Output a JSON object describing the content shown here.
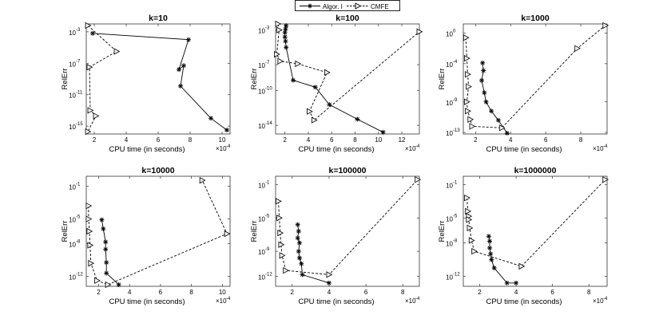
{
  "legend": {
    "series1": "Algor. I",
    "series2": "CMFE"
  },
  "chart_data": [
    {
      "type": "line",
      "title": "k=10",
      "xlabel": "CPU time (in seconds)",
      "ylabel": "RelErr",
      "x_exponent_label": "×10",
      "x_exponent": "-4",
      "xlim": [
        1.5,
        10.5
      ],
      "ylim_log10": [
        -16,
        -2
      ],
      "xticks": [
        2,
        4,
        6,
        8,
        10
      ],
      "xtick_labels": [
        "2",
        "4",
        "6",
        "8",
        "10"
      ],
      "yticks_log10": [
        -15,
        -11,
        -7,
        -3
      ],
      "ytick_mant": [
        "10",
        "10",
        "10",
        "10"
      ],
      "ytick_exp": [
        "-15",
        "-11",
        "-7",
        "-3"
      ],
      "series": [
        {
          "name": "Algor. I",
          "x": [
            1.9,
            7.9,
            7.3,
            7.6,
            7.4,
            9.3,
            10.3
          ],
          "log10_y": [
            -3.2,
            -4.0,
            -7.8,
            -7.3,
            -9.9,
            -14.0,
            -15.5
          ]
        },
        {
          "name": "CMFE",
          "x": [
            1.6,
            3.4,
            1.7,
            1.75,
            2.1,
            1.6
          ],
          "log10_y": [
            -2.2,
            -5.5,
            -7.5,
            -13.0,
            -13.7,
            -15.7
          ]
        }
      ]
    },
    {
      "type": "line",
      "title": "k=100",
      "xlabel": "CPU time (in seconds)",
      "ylabel": "RelErr",
      "x_exponent_label": "×10",
      "x_exponent": "-4",
      "xlim": [
        1.2,
        13.5
      ],
      "ylim_log10": [
        -15,
        -2.3
      ],
      "xticks": [
        2,
        4,
        6,
        8,
        10,
        12
      ],
      "xtick_labels": [
        "2",
        "4",
        "6",
        "8",
        "10",
        "12"
      ],
      "yticks_log10": [
        -14,
        -10,
        -7,
        -3
      ],
      "ytick_mant": [
        "10",
        "10",
        "10",
        "10"
      ],
      "ytick_exp": [
        "-14",
        "-10",
        "-7",
        "-3"
      ],
      "series": [
        {
          "name": "Algor. I",
          "x": [
            2.1,
            2.05,
            2.0,
            2.0,
            2.05,
            2.1,
            2.7,
            4.6,
            5.8,
            8.2,
            10.4
          ],
          "log10_y": [
            -2.5,
            -2.9,
            -3.3,
            -3.8,
            -4.3,
            -5.0,
            -8.8,
            -9.6,
            -11.6,
            -13.3,
            -14.8
          ]
        },
        {
          "name": "CMFE",
          "x": [
            1.4,
            1.5,
            1.3,
            1.6,
            3.1,
            5.6,
            4.1,
            4.5,
            13.5
          ],
          "log10_y": [
            -2.3,
            -3.0,
            -5.8,
            -6.6,
            -6.9,
            -7.9,
            -12.4,
            -13.4,
            -3.2
          ]
        }
      ]
    },
    {
      "type": "line",
      "title": "k=1000",
      "xlabel": "CPU time (in seconds)",
      "ylabel": "RelErr",
      "x_exponent_label": "×10",
      "x_exponent": "-4",
      "xlim": [
        1.3,
        9.5
      ],
      "ylim_log10": [
        -13.2,
        1.2
      ],
      "xticks": [
        2,
        4,
        6,
        8
      ],
      "xtick_labels": [
        "2",
        "4",
        "6",
        "8"
      ],
      "yticks_log10": [
        -13,
        -9,
        -4,
        0
      ],
      "ytick_mant": [
        "10",
        "10",
        "10",
        "10"
      ],
      "ytick_exp": [
        "-13",
        "-9",
        "-4",
        "0"
      ],
      "series": [
        {
          "name": "Algor. I",
          "x": [
            2.4,
            2.45,
            2.35,
            2.5,
            2.6,
            2.9,
            3.3,
            3.8
          ],
          "log10_y": [
            -3.9,
            -4.9,
            -6.2,
            -7.8,
            -9.0,
            -10.2,
            -11.4,
            -13.1
          ]
        },
        {
          "name": "CMFE",
          "x": [
            1.45,
            1.5,
            1.55,
            1.6,
            1.5,
            1.55,
            1.7,
            1.8,
            3.5,
            7.8,
            9.4
          ],
          "log10_y": [
            -0.6,
            -3.3,
            -5.4,
            -7.0,
            -9.0,
            -10.2,
            -11.3,
            -12.2,
            -12.4,
            -2.0,
            1.0
          ]
        }
      ]
    },
    {
      "type": "line",
      "title": "k=10000",
      "xlabel": "CPU time (in seconds)",
      "ylabel": "RelErr",
      "x_exponent_label": "×10",
      "x_exponent": "-4",
      "xlim": [
        1.2,
        10.5
      ],
      "ylim_log10": [
        -13.2,
        0.2
      ],
      "xticks": [
        2,
        4,
        6,
        8,
        10
      ],
      "xtick_labels": [
        "2",
        "4",
        "6",
        "8",
        "10"
      ],
      "yticks_log10": [
        -12,
        -8,
        -5,
        -1
      ],
      "ytick_mant": [
        "10",
        "10",
        "10",
        "10"
      ],
      "ytick_exp": [
        "-12",
        "-8",
        "-5",
        "-1"
      ],
      "series": [
        {
          "name": "Algor. I",
          "x": [
            2.2,
            2.3,
            2.45,
            2.45,
            2.5,
            2.5,
            3.3
          ],
          "log10_y": [
            -5.1,
            -6.2,
            -7.8,
            -8.7,
            -10.3,
            -11.6,
            -13.0
          ]
        },
        {
          "name": "CMFE",
          "x": [
            1.35,
            1.35,
            1.4,
            1.45,
            1.5,
            1.9,
            2.6,
            10.3,
            8.7
          ],
          "log10_y": [
            -3.4,
            -5.0,
            -6.5,
            -8.2,
            -10.4,
            -12.5,
            -13.0,
            -6.8,
            -0.3
          ]
        }
      ]
    },
    {
      "type": "line",
      "title": "k=100000",
      "xlabel": "CPU time (in seconds)",
      "ylabel": "RelErr",
      "x_exponent_label": "×10",
      "x_exponent": "-4",
      "xlim": [
        1.1,
        8.9
      ],
      "ylim_log10": [
        -13.2,
        0.0
      ],
      "xticks": [
        2,
        4,
        6,
        8
      ],
      "xtick_labels": [
        "2",
        "4",
        "6",
        "8"
      ],
      "yticks_log10": [
        -12,
        -9,
        -5,
        -1
      ],
      "ytick_mant": [
        "10",
        "10",
        "10",
        "10"
      ],
      "ytick_exp": [
        "-12",
        "-9",
        "-5",
        "-1"
      ],
      "series": [
        {
          "name": "Algor. I",
          "x": [
            2.3,
            2.35,
            2.3,
            2.4,
            2.35,
            2.4,
            2.5,
            2.55,
            4.0
          ],
          "log10_y": [
            -5.8,
            -6.6,
            -7.4,
            -8.0,
            -9.0,
            -9.8,
            -10.5,
            -11.8,
            -12.8
          ]
        },
        {
          "name": "CMFE",
          "x": [
            1.25,
            1.3,
            1.35,
            1.4,
            1.45,
            1.65,
            4.0,
            8.8
          ],
          "log10_y": [
            -3.0,
            -5.0,
            -6.8,
            -8.2,
            -9.5,
            -11.3,
            -11.8,
            -0.4
          ]
        }
      ]
    },
    {
      "type": "line",
      "title": "k=1000000",
      "xlabel": "CPU time (in seconds)",
      "ylabel": "RelErr",
      "x_exponent_label": "×10",
      "x_exponent": "-4",
      "xlim": [
        1.1,
        9.0
      ],
      "ylim_log10": [
        -13.2,
        0.0
      ],
      "xticks": [
        2,
        4,
        6,
        8
      ],
      "xtick_labels": [
        "2",
        "4",
        "6",
        "8"
      ],
      "yticks_log10": [
        -12,
        -8,
        -5,
        -1
      ],
      "ytick_mant": [
        "10",
        "10",
        "10",
        "10"
      ],
      "ytick_exp": [
        "-12",
        "-8",
        "-5",
        "-1"
      ],
      "series": [
        {
          "name": "Algor. I",
          "x": [
            2.5,
            2.55,
            2.55,
            2.6,
            2.65,
            2.8,
            3.5,
            4.0
          ],
          "log10_y": [
            -7.2,
            -7.8,
            -8.6,
            -9.3,
            -10.0,
            -11.0,
            -12.8,
            -12.8
          ]
        },
        {
          "name": "CMFE",
          "x": [
            1.3,
            1.35,
            1.4,
            1.4,
            1.45,
            1.55,
            1.7,
            4.3,
            8.9
          ],
          "log10_y": [
            -2.6,
            -4.2,
            -4.8,
            -5.2,
            -6.2,
            -7.7,
            -9.0,
            -10.8,
            -0.4
          ]
        }
      ]
    }
  ]
}
